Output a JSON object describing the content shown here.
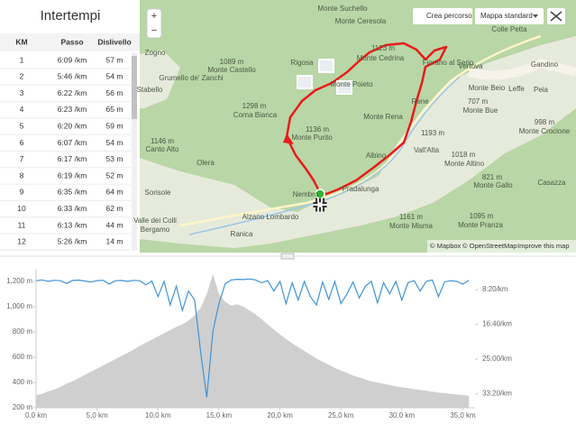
{
  "splits": {
    "title": "Intertempi",
    "columns": [
      "KM",
      "Passo",
      "Dislivello"
    ],
    "rows": [
      [
        "1",
        "6:09 /km",
        "57 m"
      ],
      [
        "2",
        "5:46 /km",
        "54 m"
      ],
      [
        "3",
        "6:22 /km",
        "56 m"
      ],
      [
        "4",
        "6:23 /km",
        "65 m"
      ],
      [
        "5",
        "6:20 /km",
        "59 m"
      ],
      [
        "6",
        "6:07 /km",
        "54 m"
      ],
      [
        "7",
        "6:17 /km",
        "53 m"
      ],
      [
        "8",
        "6:19 /km",
        "52 m"
      ],
      [
        "9",
        "6:35 /km",
        "64 m"
      ],
      [
        "10",
        "6:33 /km",
        "62 m"
      ],
      [
        "11",
        "6:13 /km",
        "44 m"
      ],
      [
        "12",
        "5:26 /km",
        "14 m"
      ]
    ]
  },
  "map": {
    "controls": {
      "zoom_in": "+",
      "zoom_out": "−",
      "create_route": "Crea percorso",
      "map_style": "Mappa standard"
    },
    "labels": [
      "Monte Suchello",
      "Monte Ceresola",
      "Colle Petta",
      "Vertova",
      "Gandino",
      "Leffe",
      "Peia",
      "Zogno",
      "1089 m",
      "Monte Castello",
      "Grumello de' Zanchi",
      "Stabello",
      "Rigosa",
      "1123 m",
      "Monte Cedrina",
      "Fiorano al Serio",
      "Monte Poieto",
      "Rene",
      "1298 m",
      "Corna Bianca",
      "Monte Rena",
      "1136 m",
      "Monte Purito",
      "1146 m",
      "Canto Alto",
      "Olera",
      "Albino",
      "Vall'Alta",
      "Sorisole",
      "Nembro",
      "Pradalunga",
      "Alzano Lombardo",
      "Ranica",
      "Valle dei Colli",
      "Bergamo",
      "1161 m",
      "Monte Misma",
      "1095 m",
      "Monte Pranza",
      "1018 m",
      "Monte Altino",
      "821 m",
      "Monte Gallo",
      "Casazza",
      "998 m",
      "Monte Crocione",
      "707 m",
      "Monte Bue",
      "Monte Beio",
      "1193 m"
    ],
    "attribution": [
      "© Mapbox",
      "© OpenStreetMap",
      "Improve this map"
    ]
  },
  "chart_data": {
    "type": "line",
    "x": [
      0,
      0.5,
      1,
      1.5,
      2,
      2.5,
      3,
      3.5,
      4,
      4.5,
      5,
      5.5,
      6,
      6.5,
      7,
      7.5,
      8,
      8.5,
      9,
      9.5,
      10,
      10.5,
      11,
      11.5,
      12,
      12.5,
      13,
      13.5,
      14,
      14.5,
      15,
      15.5,
      16,
      16.5,
      17,
      17.5,
      18,
      18.5,
      19,
      19.5,
      20,
      20.5,
      21,
      21.5,
      22,
      22.5,
      23,
      23.5,
      24,
      24.5,
      25,
      25.5,
      26,
      26.5,
      27,
      27.5,
      28,
      28.5,
      29,
      29.5,
      30,
      30.5,
      31,
      31.5,
      32,
      32.5,
      33,
      33.5,
      34,
      34.5,
      35,
      35.5
    ],
    "series": [
      {
        "color": "#cfcfcf",
        "fill": true,
        "values": [
          300,
          310,
          330,
          345,
          365,
          390,
          410,
          435,
          460,
          485,
          510,
          535,
          560,
          585,
          610,
          635,
          660,
          690,
          715,
          740,
          765,
          790,
          815,
          840,
          860,
          890,
          930,
          990,
          1100,
          1260,
          1100,
          1040,
          1010,
          1020,
          1000,
          970,
          940,
          900,
          860,
          820,
          780,
          745,
          710,
          680,
          650,
          620,
          590,
          565,
          540,
          515,
          495,
          475,
          455,
          440,
          425,
          410,
          400,
          390,
          380,
          370,
          362,
          355,
          348,
          340,
          335,
          328,
          320,
          315,
          310,
          305,
          300,
          296
        ]
      },
      {
        "color": "#3f93d6",
        "axis": "y2",
        "values": [
          370,
          360,
          380,
          365,
          372,
          410,
          368,
          362,
          375,
          390,
          370,
          365,
          420,
          372,
          368,
          380,
          366,
          372,
          430,
          375,
          600,
          380,
          720,
          450,
          800,
          520,
          650,
          1400,
          2050,
          1100,
          700,
          420,
          360,
          350,
          355,
          345,
          360,
          400,
          370,
          520,
          380,
          700,
          400,
          650,
          380,
          600,
          720,
          390,
          640,
          380,
          700,
          560,
          390,
          620,
          450,
          380,
          690,
          400,
          560,
          380,
          650,
          400,
          370,
          520,
          380,
          360,
          600,
          390,
          370,
          380,
          420,
          365
        ]
      }
    ],
    "xlim": [
      0,
      36
    ],
    "xticks": [
      {
        "value": 0,
        "label": "0,0 km"
      },
      {
        "value": 5,
        "label": "5,0 km"
      },
      {
        "value": 10,
        "label": "10,0 km"
      },
      {
        "value": 15,
        "label": "15,0 km"
      },
      {
        "value": 20,
        "label": "20,0 km"
      },
      {
        "value": 25,
        "label": "25,0 km"
      },
      {
        "value": 30,
        "label": "30,0 km"
      },
      {
        "value": 35,
        "label": "35,0 km"
      }
    ],
    "ylim": [
      200,
      1300
    ],
    "yticks": [
      {
        "value": 200,
        "label": "200 m"
      },
      {
        "value": 400,
        "label": "400 m"
      },
      {
        "value": 600,
        "label": "600 m"
      },
      {
        "value": 800,
        "label": "800 m"
      },
      {
        "value": 1000,
        "label": "1,000 m"
      },
      {
        "value": 1200,
        "label": "1,200 m"
      }
    ],
    "y2lim": [
      200,
      2200
    ],
    "y2_reversed": true,
    "y2ticks": [
      {
        "value": 500,
        "label": "8:20/km"
      },
      {
        "value": 1000,
        "label": "16:40/km"
      },
      {
        "value": 1500,
        "label": "25:00/km"
      },
      {
        "value": 2000,
        "label": "33:20/km"
      }
    ],
    "grid": false
  }
}
